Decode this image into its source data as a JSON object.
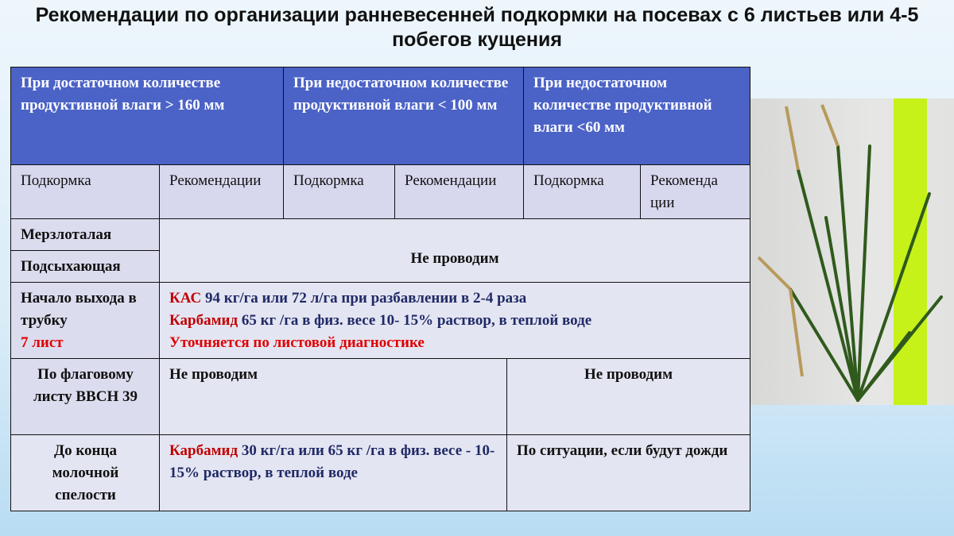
{
  "title": "Рекомендации по организации ранневесенней подкормки на посевах с 6 листьев или 4-5 побегов кущения",
  "table": {
    "headers": [
      "При достаточном количестве продуктивной влаги > 160 мм",
      "При недостаточном количестве продуктивной влаги < 100 мм",
      "При недостаточном количестве продуктивной влаги <60 мм"
    ],
    "subheaders": [
      "Подкормка",
      "Рекомендации",
      "Подкормка",
      "Рекомендации",
      "Подкормка",
      "Рекоменда ции"
    ],
    "rows": {
      "frozen": {
        "label": "Мерзлоталая"
      },
      "drying": {
        "label": "Подсыхающая",
        "value": "Не проводим"
      },
      "tube": {
        "label1": "Начало выхода в трубку",
        "label2": "7 лист",
        "l1a": "КАС",
        "l1b": " 94 кг/га или 72 л/га при разбавлении в 2-4 раза",
        "l2a": "Карбамид",
        "l2b": " 65  кг /га в физ. весе  10- 15% раствор, в теплой воде",
        "l3": "Уточняется по листовой диагностике"
      },
      "flag": {
        "label": "По флаговому листу ВВСН 39",
        "left": "Не проводим",
        "right": "Не проводим"
      },
      "milk": {
        "label": "До конца молочной спелости",
        "la": "Карбамид",
        "lb": " 30 кг/га  или 65  кг /га в физ. весе  - 10-15% раствор, в теплой воде",
        "right": "По ситуации, если будут дожди"
      }
    }
  },
  "colors": {
    "header": "#4b62c6",
    "accent_red": "#c00000",
    "text_navy": "#1f2a66"
  }
}
